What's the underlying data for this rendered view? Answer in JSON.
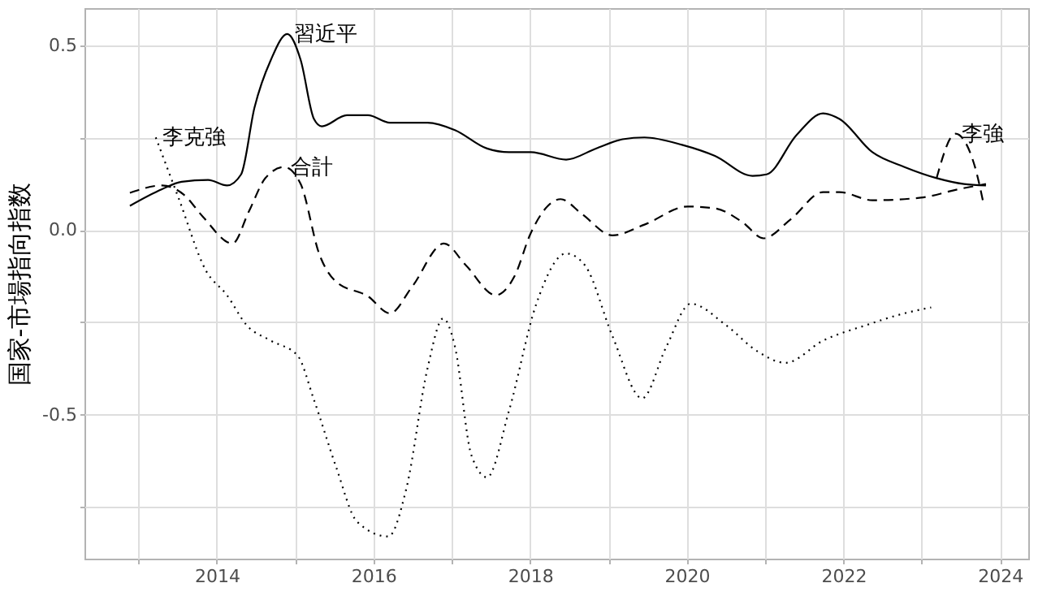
{
  "chart_data": {
    "type": "line",
    "ylabel": "国家-市場指向指数",
    "xlim": [
      2012.31,
      2024.36
    ],
    "ylim": [
      -0.89,
      0.6
    ],
    "xticks": [
      {
        "value": 2013,
        "label": null
      },
      2014,
      {
        "value": 2015,
        "label": null
      },
      2016,
      {
        "value": 2017,
        "label": null
      },
      2018,
      {
        "value": 2019,
        "label": null
      },
      2020,
      {
        "value": 2021,
        "label": null
      },
      2022,
      {
        "value": 2023,
        "label": null
      },
      2024
    ],
    "yticks": [
      {
        "value": -0.75,
        "label": null
      },
      -0.5,
      {
        "value": -0.25,
        "label": null
      },
      {
        "value": 0,
        "label": "0.0"
      },
      {
        "value": 0.25,
        "label": null
      },
      0.5
    ],
    "grid": true,
    "series": [
      {
        "name": "習近平",
        "color": "#000000",
        "line_style": "solid",
        "x": [
          2012.89,
          2013.3,
          2013.55,
          2013.89,
          2014.13,
          2014.31,
          2014.48,
          2014.69,
          2014.9,
          2015.07,
          2015.24,
          2015.34,
          2015.66,
          2015.93,
          2016.21,
          2016.69,
          2017.04,
          2017.45,
          2017.73,
          2018.01,
          2018.46,
          2018.84,
          2019.18,
          2019.46,
          2019.94,
          2020.36,
          2020.84,
          2021.02,
          2021.4,
          2021.74,
          2021.95,
          2022.37,
          2022.78,
          2023.19,
          2023.54,
          2023.82
        ],
        "values": [
          0.065,
          0.11,
          0.13,
          0.135,
          0.12,
          0.15,
          0.33,
          0.46,
          0.53,
          0.46,
          0.3,
          0.28,
          0.31,
          0.31,
          0.29,
          0.29,
          0.27,
          0.22,
          0.21,
          0.21,
          0.19,
          0.22,
          0.245,
          0.25,
          0.23,
          0.2,
          0.146,
          0.15,
          0.256,
          0.315,
          0.3,
          0.21,
          0.17,
          0.14,
          0.124,
          0.12
        ]
      },
      {
        "name": "合計",
        "color": "#000000",
        "line_style": "dashed",
        "x": [
          2012.89,
          2013.3,
          2013.58,
          2013.82,
          2014.2,
          2014.41,
          2014.62,
          2014.86,
          2015.07,
          2015.31,
          2015.52,
          2015.93,
          2016.21,
          2016.49,
          2016.9,
          2017.18,
          2017.56,
          2017.8,
          2018.01,
          2018.39,
          2018.66,
          2019.05,
          2019.46,
          2020.01,
          2020.36,
          2020.71,
          2020.98,
          2021.33,
          2021.74,
          2021.95,
          2022.37,
          2022.99,
          2023.47,
          2023.82
        ],
        "values": [
          0.1,
          0.12,
          0.095,
          0.036,
          -0.037,
          0.05,
          0.14,
          0.17,
          0.124,
          -0.067,
          -0.14,
          -0.18,
          -0.226,
          -0.155,
          -0.037,
          -0.096,
          -0.177,
          -0.126,
          -0.008,
          0.083,
          0.043,
          -0.015,
          0.014,
          0.063,
          0.058,
          0.021,
          -0.023,
          0.029,
          0.102,
          0.102,
          0.08,
          0.087,
          0.11,
          0.124
        ]
      },
      {
        "name": "李克強",
        "color": "#000000",
        "line_style": "dotted",
        "x": [
          2013.22,
          2013.51,
          2013.86,
          2014.13,
          2014.38,
          2014.69,
          2015.03,
          2015.24,
          2015.52,
          2015.79,
          2016.19,
          2016.42,
          2016.69,
          2016.89,
          2017.04,
          2017.25,
          2017.45,
          2017.73,
          2018.08,
          2018.46,
          2018.7,
          2019.05,
          2019.43,
          2019.74,
          2020.05,
          2020.5,
          2020.91,
          2021.26,
          2021.74,
          2022.29,
          2022.78,
          2023.12
        ],
        "values": [
          0.25,
          0.087,
          -0.11,
          -0.177,
          -0.258,
          -0.3,
          -0.34,
          -0.46,
          -0.64,
          -0.79,
          -0.83,
          -0.7,
          -0.375,
          -0.24,
          -0.316,
          -0.61,
          -0.67,
          -0.49,
          -0.2,
          -0.064,
          -0.096,
          -0.287,
          -0.456,
          -0.316,
          -0.2,
          -0.258,
          -0.33,
          -0.36,
          -0.3,
          -0.258,
          -0.226,
          -0.21
        ]
      },
      {
        "name": "李強",
        "color": "#000000",
        "line_style": "dashed",
        "x": [
          2023.19,
          2023.43,
          2023.68,
          2023.78
        ],
        "values": [
          0.14,
          0.26,
          0.17,
          0.08
        ]
      }
    ]
  }
}
